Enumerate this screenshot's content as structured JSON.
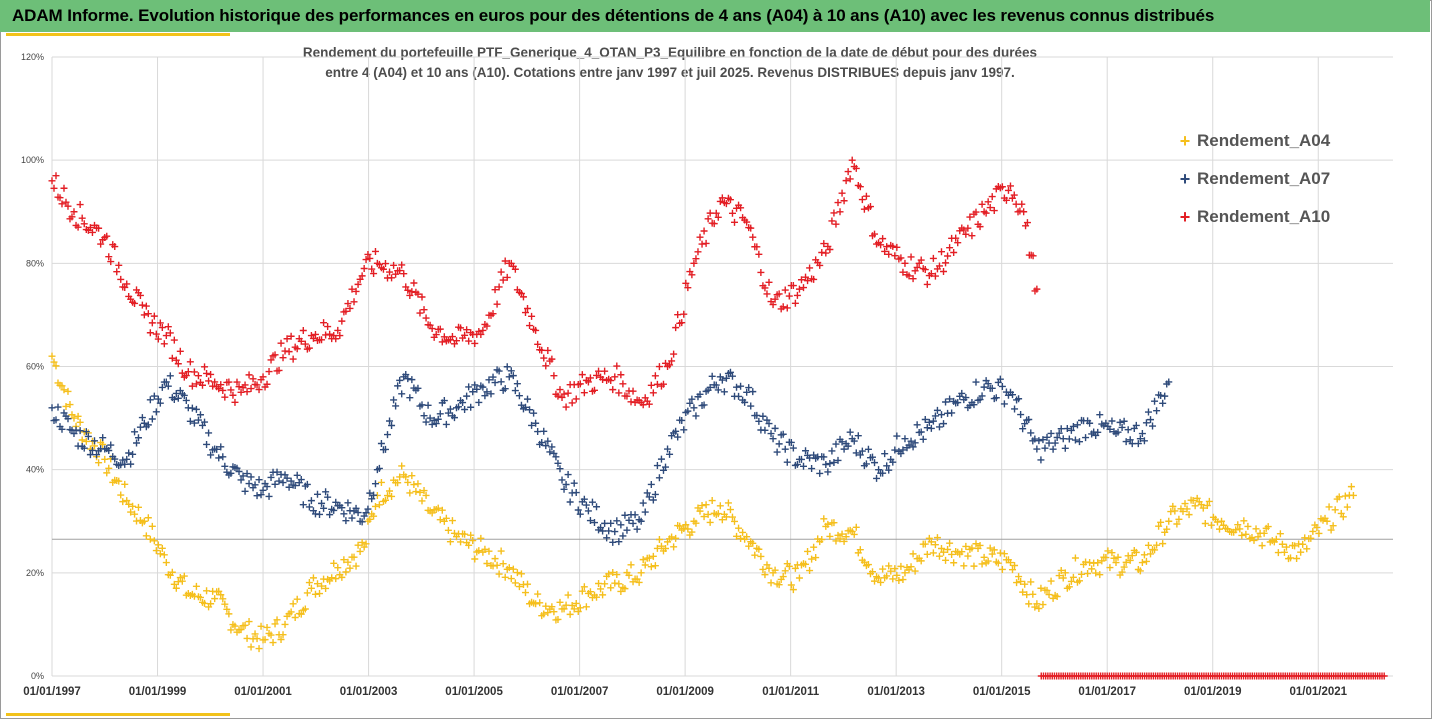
{
  "header": {
    "title": "ADAM Informe. Evolution historique des performances en euros pour des détentions de 4 ans (A04) à 10 ans (A10) avec les revenus connus distribués"
  },
  "colors": {
    "header_bg": "#6dbf78",
    "accent": "#f2c21a",
    "A04": "#f5bf1c",
    "A07": "#2e4a7a",
    "A10": "#e31e24",
    "grid": "#d9d9d9"
  },
  "chart_data": {
    "type": "scatter",
    "title_line1": "Rendement du portefeuille PTF_Generique_4_OTAN_P3_Equilibre  en fonction de la date de début pour des durées",
    "title_line2": "entre 4 (A04) et 10 ans (A10). Cotations entre janv 1997 et juil 2025. Revenus DISTRIBUES depuis janv 1997.",
    "marker": "+",
    "x_tick_labels": [
      "01/01/1997",
      "01/01/1999",
      "01/01/2001",
      "01/01/2003",
      "01/01/2005",
      "01/01/2007",
      "01/01/2009",
      "01/01/2011",
      "01/01/2013",
      "01/01/2015",
      "01/01/2017",
      "01/01/2019",
      "01/01/2021"
    ],
    "xlim": [
      "1997-01-01",
      "2022-06-01"
    ],
    "y_tick_labels": [
      "0%",
      "20%",
      "40%",
      "60%",
      "80%",
      "100%",
      "120%"
    ],
    "ylim": [
      0,
      1.2
    ],
    "reference_line_y": 0.265,
    "legend_position": "top-right",
    "series": [
      {
        "name": "Rendement_A04",
        "x": [
          "1997-01",
          "1997-06",
          "1998-01",
          "1998-06",
          "1998-10",
          "1999-03",
          "1999-08",
          "2000-02",
          "2000-08",
          "2001-01",
          "2001-06",
          "2001-12",
          "2002-06",
          "2002-12",
          "2003-03",
          "2003-09",
          "2004-03",
          "2004-09",
          "2005-03",
          "2005-09",
          "2006-03",
          "2006-09",
          "2007-03",
          "2007-09",
          "2008-03",
          "2008-09",
          "2009-03",
          "2009-09",
          "2010-03",
          "2010-09",
          "2011-03",
          "2011-09",
          "2012-03",
          "2012-09",
          "2013-03",
          "2013-09",
          "2014-03",
          "2014-09",
          "2015-03",
          "2015-09",
          "2016-03",
          "2016-09",
          "2017-03",
          "2017-09",
          "2018-03",
          "2018-09",
          "2019-03",
          "2019-09",
          "2020-03",
          "2020-09",
          "2021-03",
          "2021-09"
        ],
        "y": [
          0.62,
          0.5,
          0.42,
          0.34,
          0.3,
          0.22,
          0.16,
          0.15,
          0.09,
          0.07,
          0.1,
          0.17,
          0.21,
          0.25,
          0.35,
          0.39,
          0.32,
          0.27,
          0.24,
          0.21,
          0.14,
          0.13,
          0.16,
          0.18,
          0.2,
          0.26,
          0.3,
          0.33,
          0.27,
          0.2,
          0.19,
          0.29,
          0.28,
          0.19,
          0.2,
          0.26,
          0.24,
          0.23,
          0.22,
          0.14,
          0.19,
          0.22,
          0.22,
          0.22,
          0.3,
          0.33,
          0.3,
          0.29,
          0.26,
          0.24,
          0.3,
          0.35
        ]
      },
      {
        "name": "Rendement_A07",
        "x": [
          "1997-01",
          "1997-06",
          "1998-01",
          "1998-06",
          "1998-10",
          "1999-03",
          "1999-08",
          "2000-02",
          "2000-08",
          "2001-01",
          "2001-06",
          "2001-12",
          "2002-06",
          "2002-12",
          "2003-03",
          "2003-09",
          "2004-03",
          "2004-09",
          "2005-03",
          "2005-09",
          "2006-03",
          "2006-09",
          "2007-03",
          "2007-09",
          "2008-03",
          "2008-09",
          "2009-03",
          "2009-09",
          "2010-03",
          "2010-09",
          "2011-03",
          "2011-09",
          "2012-03",
          "2012-09",
          "2013-03",
          "2013-09",
          "2014-03",
          "2014-09",
          "2015-03",
          "2015-09",
          "2016-03",
          "2016-09",
          "2017-03",
          "2017-09",
          "2018-03"
        ],
        "y": [
          0.52,
          0.47,
          0.44,
          0.42,
          0.49,
          0.57,
          0.52,
          0.44,
          0.38,
          0.36,
          0.39,
          0.34,
          0.33,
          0.31,
          0.4,
          0.58,
          0.5,
          0.52,
          0.56,
          0.58,
          0.49,
          0.38,
          0.32,
          0.28,
          0.3,
          0.44,
          0.52,
          0.58,
          0.55,
          0.46,
          0.42,
          0.41,
          0.46,
          0.4,
          0.46,
          0.48,
          0.53,
          0.56,
          0.55,
          0.44,
          0.46,
          0.49,
          0.47,
          0.47,
          0.57
        ]
      },
      {
        "name": "Rendement_A10",
        "x": [
          "1997-01",
          "1997-06",
          "1998-01",
          "1998-06",
          "1998-10",
          "1999-03",
          "1999-08",
          "2000-02",
          "2000-08",
          "2001-01",
          "2001-06",
          "2001-12",
          "2002-06",
          "2002-12",
          "2003-03",
          "2003-09",
          "2004-03",
          "2004-09",
          "2005-03",
          "2005-09",
          "2006-03",
          "2006-09",
          "2007-03",
          "2007-09",
          "2008-03",
          "2008-09",
          "2009-03",
          "2009-09",
          "2010-03",
          "2010-09",
          "2011-03",
          "2011-09",
          "2012-03",
          "2012-09",
          "2013-03",
          "2013-09",
          "2014-03",
          "2014-09",
          "2015-03",
          "2015-06",
          "2015-09"
        ],
        "y": [
          0.96,
          0.9,
          0.85,
          0.76,
          0.7,
          0.66,
          0.59,
          0.57,
          0.55,
          0.58,
          0.63,
          0.66,
          0.67,
          0.79,
          0.8,
          0.78,
          0.68,
          0.65,
          0.67,
          0.8,
          0.67,
          0.54,
          0.57,
          0.58,
          0.53,
          0.6,
          0.8,
          0.92,
          0.88,
          0.72,
          0.75,
          0.82,
          1.0,
          0.84,
          0.8,
          0.78,
          0.84,
          0.9,
          0.95,
          0.9,
          0.75
        ]
      }
    ],
    "zero_band": {
      "series": "Rendement_A10",
      "x_start": "2015-10",
      "x_end": "2022-04",
      "y": 0
    }
  }
}
